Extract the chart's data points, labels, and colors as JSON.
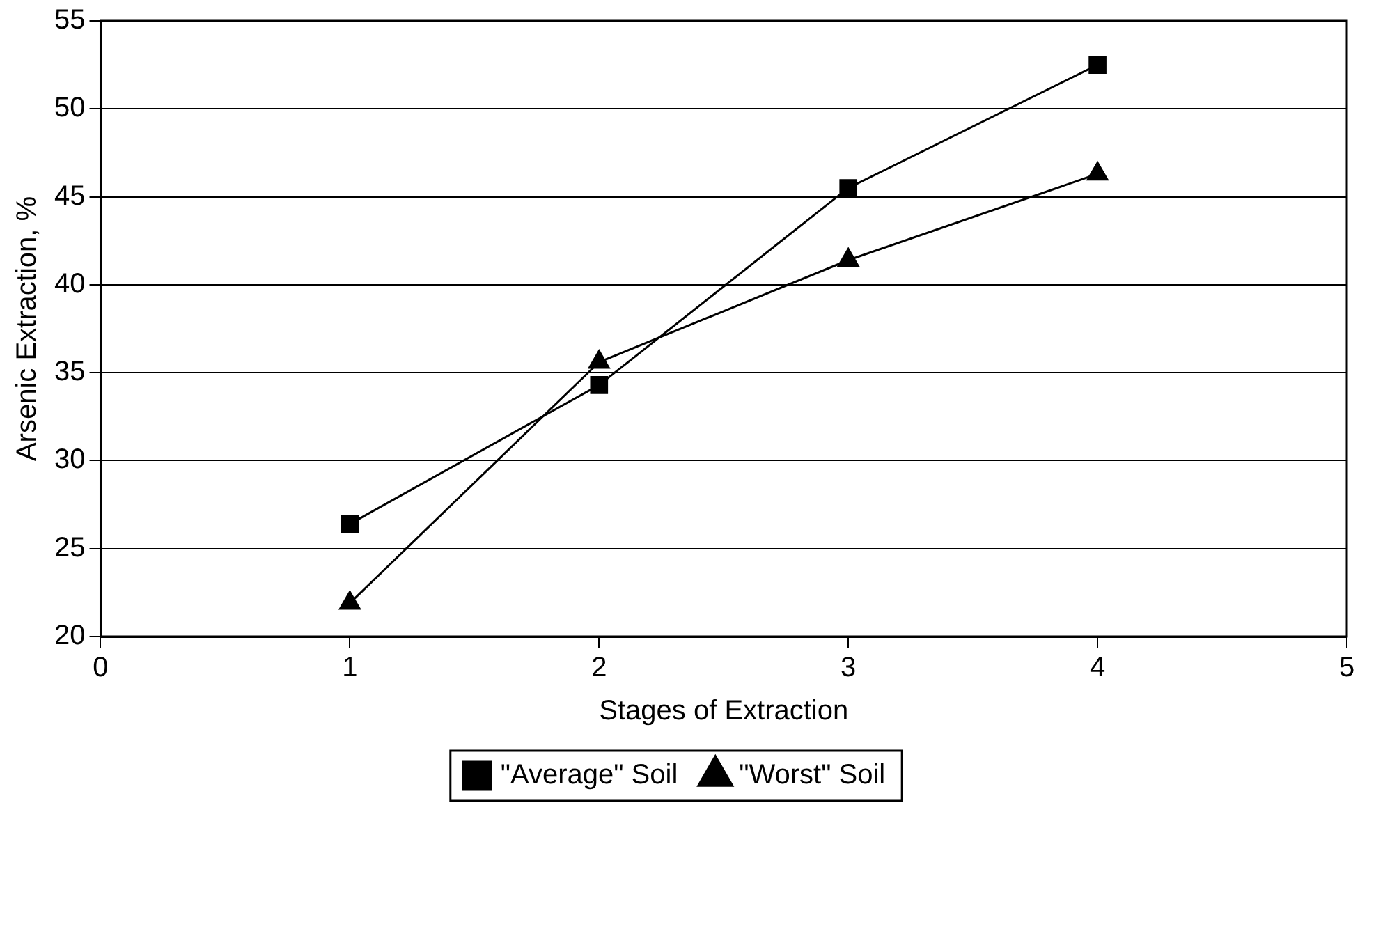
{
  "chart_data": {
    "type": "line",
    "xlabel": "Stages of Extraction",
    "ylabel": "Arsenic Extraction, %",
    "xlim": [
      0,
      5
    ],
    "xticks": [
      0,
      1,
      2,
      3,
      4,
      5
    ],
    "ylim": [
      20,
      55
    ],
    "yticks": [
      20,
      25,
      30,
      35,
      40,
      45,
      50,
      55
    ],
    "grid": "y",
    "legend": "bottom",
    "series": [
      {
        "name": "\"Average\" Soil",
        "color": "#000000",
        "marker": "square",
        "x": [
          1,
          2,
          3,
          4
        ],
        "values": [
          26.4,
          34.3,
          45.5,
          52.5
        ]
      },
      {
        "name": "\"Worst\" Soil",
        "color": "#000000",
        "marker": "triangle",
        "x": [
          1,
          2,
          3,
          4
        ],
        "values": [
          21.9,
          35.6,
          41.4,
          46.3
        ]
      }
    ]
  }
}
